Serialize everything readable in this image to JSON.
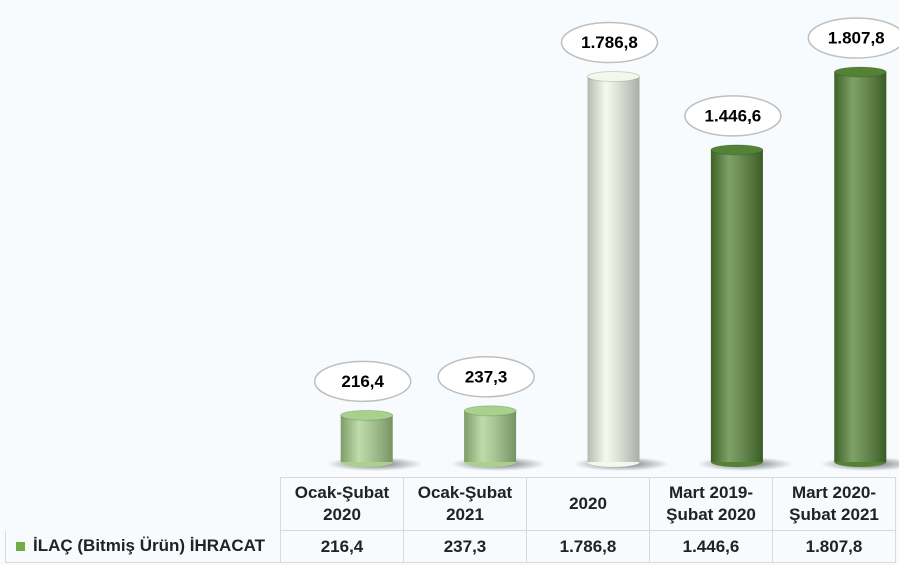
{
  "chart_data": {
    "type": "bar",
    "series_name": "İLAÇ (Bitmiş Ürün) İHRACAT",
    "categories": [
      "Ocak-Şubat 2020",
      "Ocak-Şubat 2021",
      "2020",
      "Mart 2019-Şubat 2020",
      "Mart 2020-Şubat 2021"
    ],
    "values": [
      216.4,
      237.3,
      1786.8,
      1446.6,
      1807.8
    ],
    "value_labels": [
      "216,4",
      "237,3",
      "1.786,8",
      "1.446,6",
      "1.807,8"
    ],
    "colors": [
      "#a9d18e",
      "#a9d18e",
      "#f2f8ea",
      "#548235",
      "#548235"
    ],
    "legend_color": "#70ad47"
  }
}
